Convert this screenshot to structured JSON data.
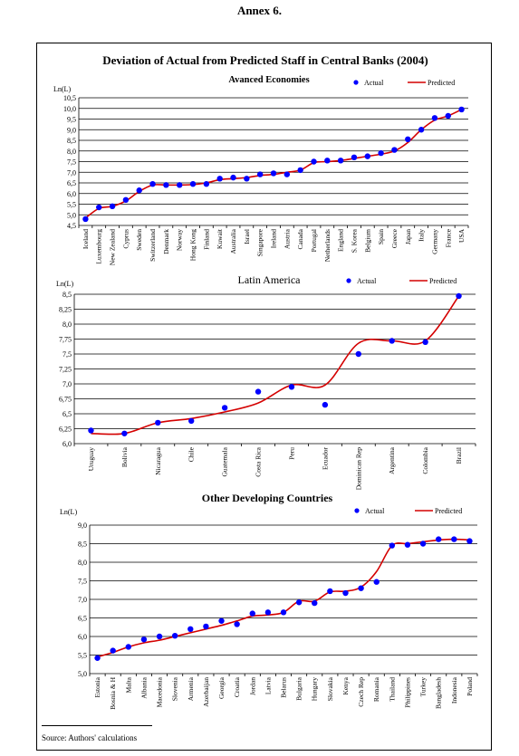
{
  "page": {
    "annex": "Annex 6.",
    "source": "Source: Authors' calculations"
  },
  "colors": {
    "actual": "#0000ff",
    "predicted": "#d40000",
    "grid": "#000000"
  },
  "chart_data": [
    {
      "type": "line",
      "title": "Deviation of Actual from Predicted Staff in Central Banks (2004)",
      "subtitle": "Avanced Economies",
      "ylabel": "Ln(L)",
      "xlabel": "",
      "ylim": [
        4.5,
        10.5
      ],
      "ystep": 0.5,
      "grid": true,
      "legend_placement": "top-right",
      "categories": [
        "Iceland",
        "Luxembourg",
        "New Zealand",
        "Cyprus",
        "Sweden",
        "Switzerland",
        "Denmark",
        "Norway",
        "Hong Kong",
        "Finland",
        "Kuwait",
        "Australia",
        "Israel",
        "Singapore",
        "Ireland",
        "Austria",
        "Canada",
        "Portugal",
        "Netherlands",
        "England",
        "S. Korea",
        "Belgium",
        "Spain",
        "Greece",
        "Japan",
        "Italy",
        "Germany",
        "France",
        "USA"
      ],
      "series": [
        {
          "name": "Actual",
          "style": "marker",
          "values": [
            4.8,
            5.35,
            5.4,
            5.7,
            6.15,
            6.45,
            6.4,
            6.4,
            6.45,
            6.45,
            6.7,
            6.75,
            6.7,
            6.9,
            6.95,
            6.9,
            7.1,
            7.5,
            7.55,
            7.55,
            7.7,
            7.75,
            7.9,
            8.05,
            8.55,
            9.0,
            9.55,
            9.65,
            9.95
          ]
        },
        {
          "name": "Predicted",
          "style": "line",
          "values": [
            4.85,
            5.3,
            5.4,
            5.65,
            6.1,
            6.4,
            6.4,
            6.4,
            6.42,
            6.5,
            6.65,
            6.7,
            6.75,
            6.85,
            6.9,
            7.0,
            7.1,
            7.45,
            7.5,
            7.55,
            7.65,
            7.75,
            7.85,
            8.0,
            8.4,
            9.0,
            9.45,
            9.65,
            9.95
          ]
        }
      ]
    },
    {
      "type": "line",
      "title": "Latin America",
      "ylabel": "Ln(L)",
      "xlabel": "",
      "ylim": [
        6.0,
        8.5
      ],
      "ystep": 0.25,
      "grid": true,
      "legend_placement": "top-right",
      "categories": [
        "Uruguay",
        "Bolivia",
        "Nicaragua",
        "Chile",
        "Guatemala",
        "Costa Rica",
        "Peru",
        "Ecuador",
        "Dominican Rep",
        "Argentina",
        "Colombia",
        "Brazil"
      ],
      "series": [
        {
          "name": "Actual",
          "style": "marker",
          "values": [
            6.22,
            6.17,
            6.35,
            6.38,
            6.6,
            6.87,
            6.95,
            6.65,
            7.5,
            7.72,
            7.7,
            8.47
          ]
        },
        {
          "name": "Predicted",
          "style": "line",
          "values": [
            6.17,
            6.17,
            6.35,
            6.42,
            6.53,
            6.68,
            6.98,
            6.98,
            7.68,
            7.72,
            7.72,
            8.47
          ]
        }
      ]
    },
    {
      "type": "line",
      "title": "Other Developing Countries",
      "ylabel": "Ln(L)",
      "xlabel": "",
      "ylim": [
        5.0,
        9.0
      ],
      "ystep": 0.5,
      "grid": true,
      "legend_placement": "top-right",
      "categories": [
        "Estonia",
        "Bosnia & H",
        "Malta",
        "Albania",
        "Macedonia",
        "Slovenia",
        "Armenia",
        "Azerbaijan",
        "Georgia",
        "Croatia",
        "Jordan",
        "Latvia",
        "Belarus",
        "Bulgaria",
        "Hungary",
        "Slovakia",
        "Kenya",
        "Czech Rep",
        "Romania",
        "Thailand",
        "Philippines",
        "Turkey",
        "Bangladesh",
        "Indonesia",
        "Poland"
      ],
      "series": [
        {
          "name": "Actual",
          "style": "marker",
          "values": [
            5.42,
            5.62,
            5.72,
            5.92,
            6.0,
            6.02,
            6.2,
            6.27,
            6.42,
            6.33,
            6.62,
            6.65,
            6.65,
            6.92,
            6.9,
            7.22,
            7.17,
            7.3,
            7.47,
            8.45,
            8.47,
            8.5,
            8.62,
            8.62,
            8.57
          ]
        },
        {
          "name": "Predicted",
          "style": "line",
          "values": [
            5.45,
            5.57,
            5.72,
            5.83,
            5.9,
            6.0,
            6.1,
            6.2,
            6.3,
            6.42,
            6.55,
            6.58,
            6.65,
            6.95,
            6.95,
            7.2,
            7.22,
            7.33,
            7.75,
            8.45,
            8.5,
            8.55,
            8.6,
            8.62,
            8.6
          ]
        }
      ]
    }
  ]
}
